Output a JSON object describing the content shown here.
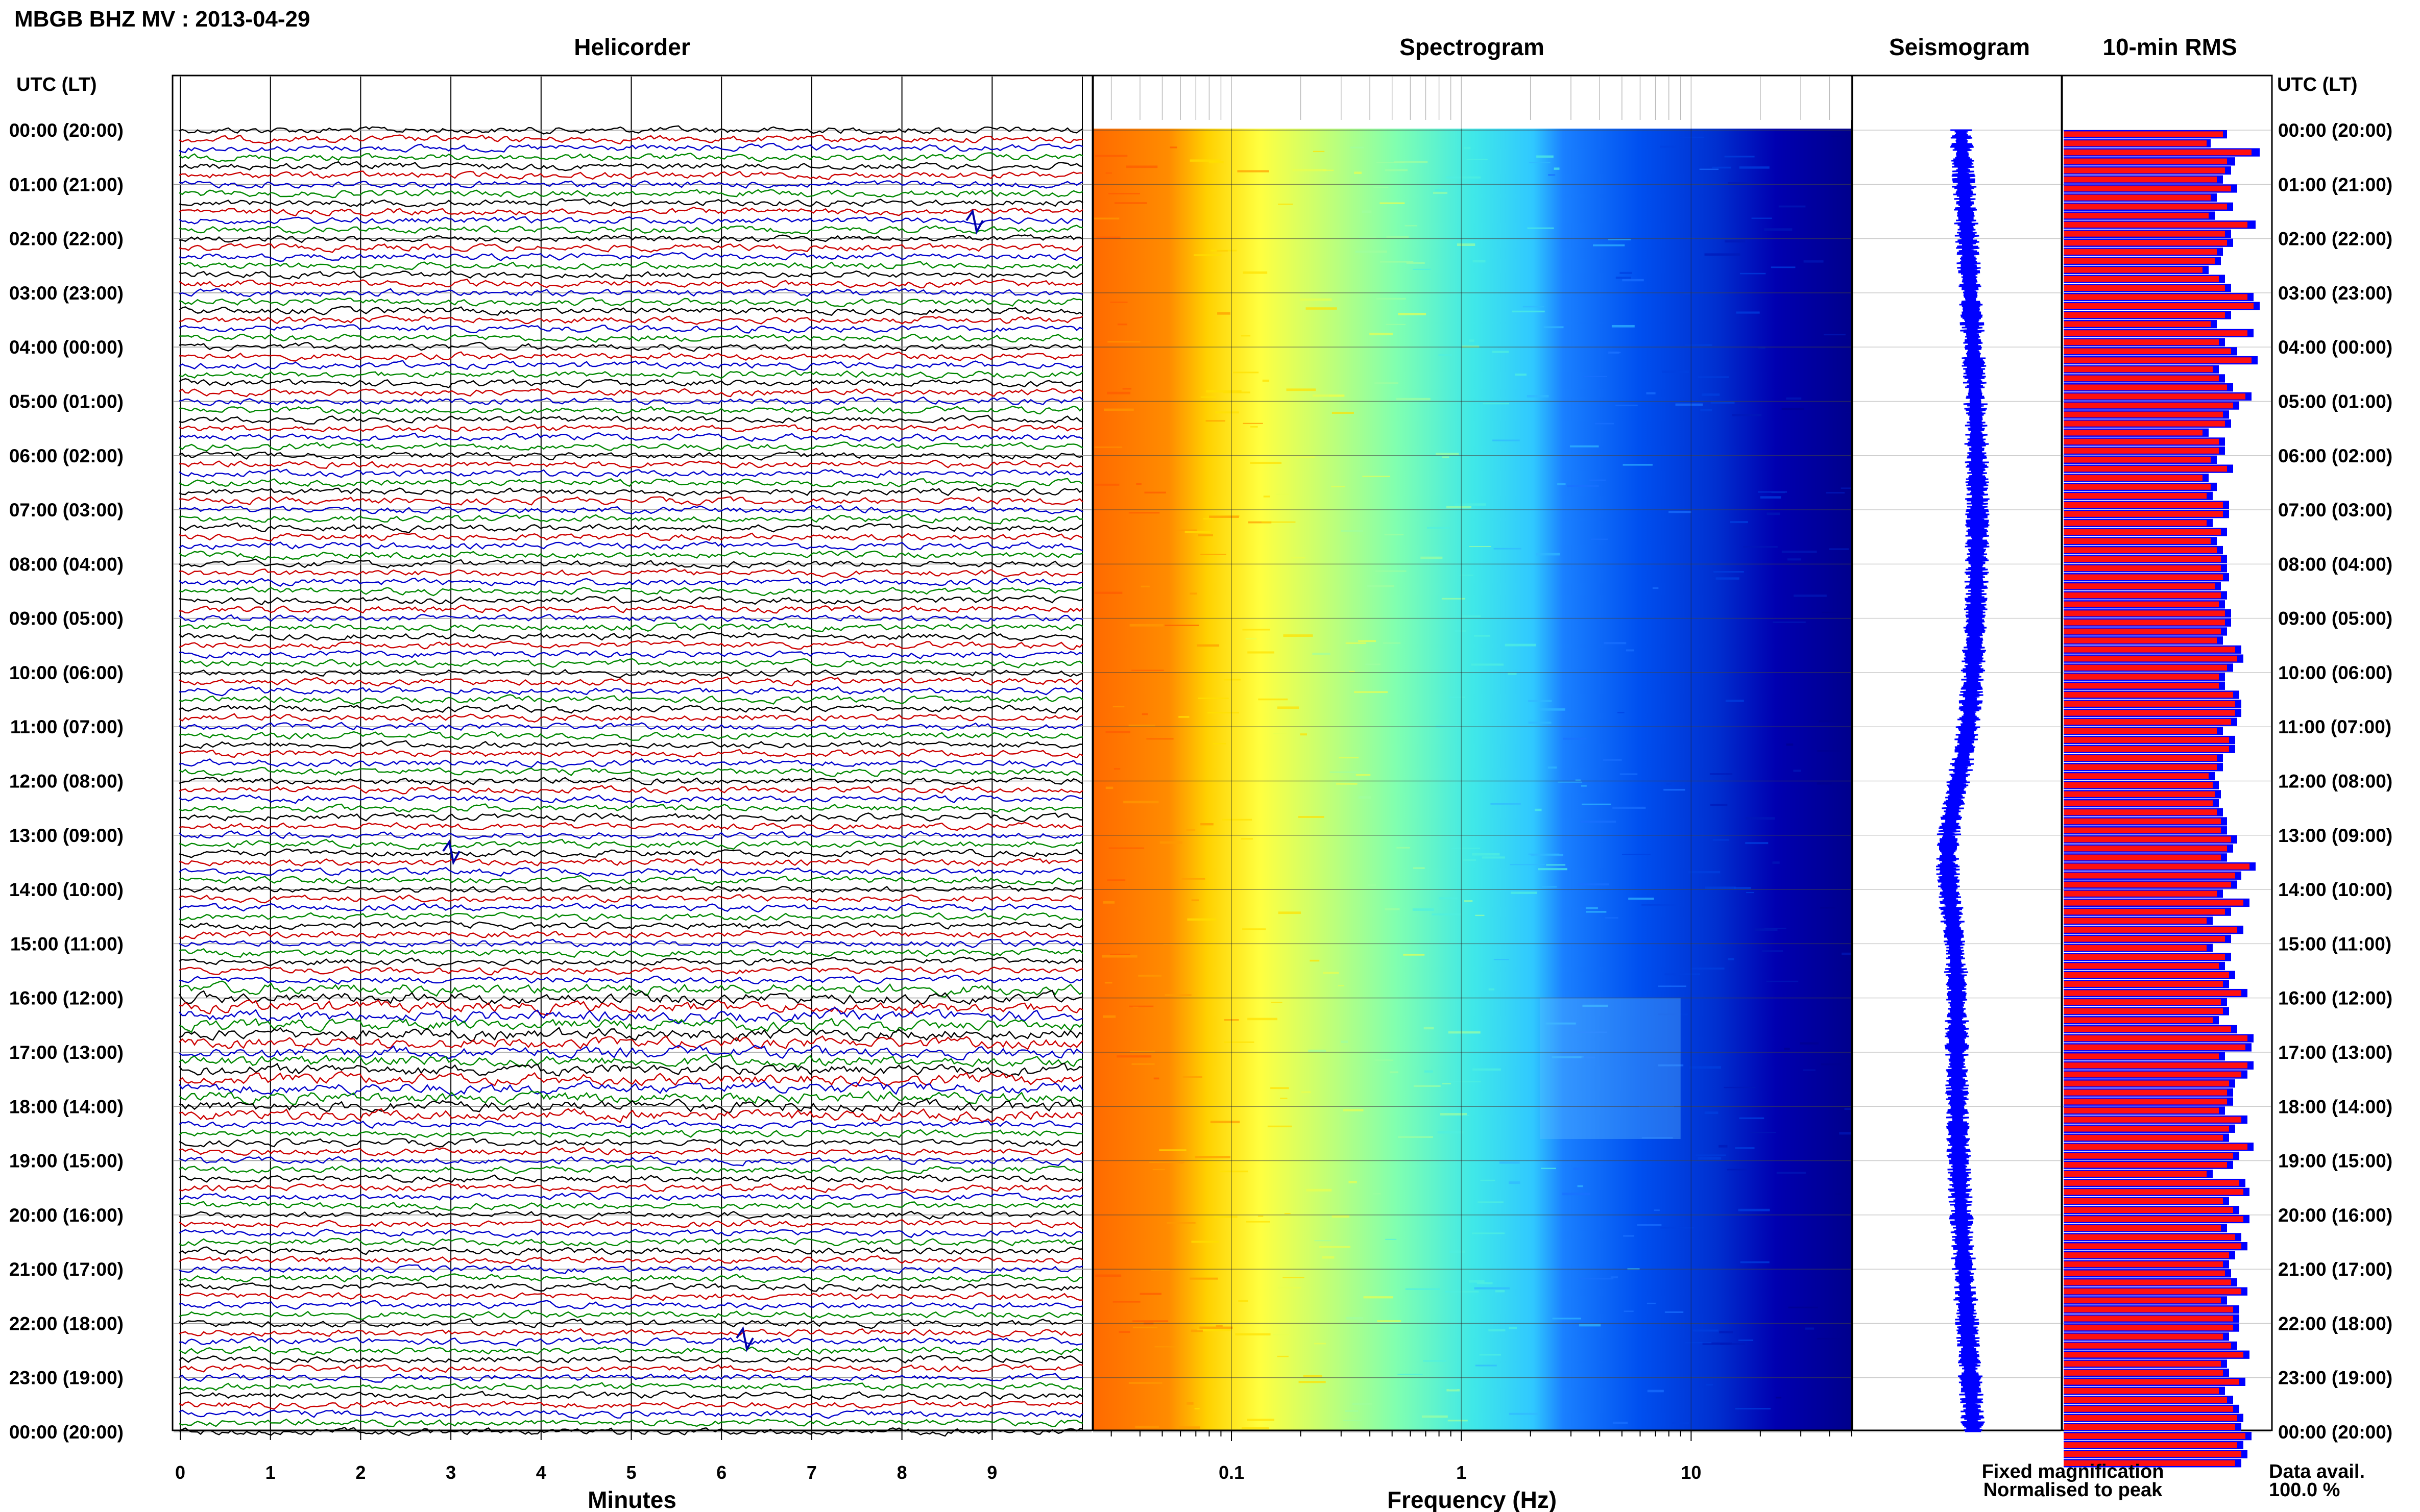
{
  "header": {
    "station_title": "MBGB BHZ MV : 2013-04-29",
    "utc_lt_label": "UTC (LT)"
  },
  "panels": {
    "helicorder": "Helicorder",
    "spectrogram": "Spectrogram",
    "seismogram": "Seismogram",
    "rms": "10-min RMS"
  },
  "legend": {
    "fixed": "Fixed magnification",
    "normalised": "Normalised to peak",
    "fixed_color": "#0000ff",
    "normalised_color": "#ff0000"
  },
  "availability": {
    "label": "Data avail.",
    "value": "100.0 %"
  },
  "chart_data": [
    {
      "type": "line",
      "name": "helicorder",
      "title": "Helicorder",
      "xlabel": "Minutes",
      "xticks": [
        "0",
        "1",
        "2",
        "3",
        "4",
        "5",
        "6",
        "7",
        "8",
        "9"
      ],
      "xlim": [
        0,
        10
      ],
      "time_labels": [
        "00:00 (20:00)",
        "01:00 (21:00)",
        "02:00 (22:00)",
        "03:00 (23:00)",
        "04:00 (00:00)",
        "05:00 (01:00)",
        "06:00 (02:00)",
        "07:00 (03:00)",
        "08:00 (04:00)",
        "09:00 (05:00)",
        "10:00 (06:00)",
        "11:00 (07:00)",
        "12:00 (08:00)",
        "13:00 (09:00)",
        "14:00 (10:00)",
        "15:00 (11:00)",
        "16:00 (12:00)",
        "17:00 (13:00)",
        "18:00 (14:00)",
        "19:00 (15:00)",
        "20:00 (16:00)",
        "21:00 (17:00)",
        "22:00 (18:00)",
        "23:00 (19:00)",
        "00:00 (20:00)"
      ],
      "rows_per_hour": 6,
      "trace_colors": [
        "#000000",
        "#cc0000",
        "#0000cc",
        "#008800"
      ]
    },
    {
      "type": "heatmap",
      "name": "spectrogram",
      "title": "Spectrogram",
      "xlabel": "Frequency (Hz)",
      "xscale": "log",
      "xlim": [
        0.025,
        50
      ],
      "xticks": [
        "0.1",
        "1",
        "10"
      ],
      "colormap": [
        "#ff6600",
        "#ffcc00",
        "#ffff33",
        "#aaff66",
        "#33ffcc",
        "#33ccff",
        "#0066ff",
        "#0000cc"
      ]
    },
    {
      "type": "line",
      "name": "seismogram",
      "title": "Seismogram",
      "color": "#0000ff"
    },
    {
      "type": "bar",
      "name": "rms",
      "title": "10-min RMS",
      "orientation": "horizontal",
      "series": [
        {
          "name": "Fixed magnification",
          "color": "#0000ff"
        },
        {
          "name": "Normalised to peak",
          "color": "#ff0000"
        }
      ],
      "fixed_values": [
        0.8,
        0.72,
        0.96,
        0.84,
        0.82,
        0.78,
        0.85,
        0.75,
        0.83,
        0.74,
        0.94,
        0.82,
        0.83,
        0.78,
        0.77,
        0.71,
        0.79,
        0.82,
        0.93,
        0.96,
        0.82,
        0.75,
        0.93,
        0.79,
        0.85,
        0.95,
        0.76,
        0.79,
        0.83,
        0.92,
        0.86,
        0.81,
        0.82,
        0.71,
        0.79,
        0.79,
        0.75,
        0.83,
        0.71,
        0.75,
        0.73,
        0.81,
        0.81,
        0.73,
        0.8,
        0.75,
        0.78,
        0.8,
        0.8,
        0.81,
        0.77,
        0.8,
        0.79,
        0.82,
        0.82,
        0.8,
        0.78,
        0.87,
        0.88,
        0.83,
        0.79,
        0.79,
        0.86,
        0.87,
        0.87,
        0.85,
        0.78,
        0.84,
        0.84,
        0.78,
        0.78,
        0.74,
        0.76,
        0.77,
        0.76,
        0.78,
        0.8,
        0.8,
        0.85,
        0.83,
        0.8,
        0.94,
        0.87,
        0.85,
        0.78,
        0.91,
        0.82,
        0.73,
        0.88,
        0.82,
        0.73,
        0.82,
        0.79,
        0.84,
        0.81,
        0.9,
        0.8,
        0.81,
        0.76,
        0.85,
        0.93,
        0.92,
        0.79,
        0.93,
        0.9,
        0.84,
        0.83,
        0.83,
        0.79,
        0.9,
        0.84,
        0.81,
        0.93,
        0.86,
        0.83,
        0.73,
        0.89,
        0.91,
        0.81,
        0.86,
        0.91,
        0.8,
        0.87,
        0.9,
        0.84,
        0.81,
        0.82,
        0.85,
        0.9,
        0.8,
        0.86,
        0.86,
        0.86,
        0.81,
        0.85,
        0.91,
        0.8,
        0.81,
        0.89,
        0.79,
        0.83,
        0.86,
        0.88,
        0.87,
        0.92,
        0.88,
        0.9,
        0.87
      ],
      "normalised_values": [
        0.78,
        0.7,
        0.92,
        0.8,
        0.79,
        0.75,
        0.82,
        0.72,
        0.8,
        0.71,
        0.9,
        0.79,
        0.8,
        0.75,
        0.74,
        0.68,
        0.76,
        0.79,
        0.9,
        0.93,
        0.79,
        0.72,
        0.9,
        0.76,
        0.82,
        0.92,
        0.73,
        0.76,
        0.8,
        0.89,
        0.83,
        0.78,
        0.79,
        0.68,
        0.76,
        0.76,
        0.72,
        0.8,
        0.68,
        0.72,
        0.7,
        0.78,
        0.78,
        0.7,
        0.77,
        0.72,
        0.75,
        0.77,
        0.77,
        0.78,
        0.74,
        0.77,
        0.76,
        0.79,
        0.79,
        0.77,
        0.75,
        0.84,
        0.85,
        0.8,
        0.76,
        0.76,
        0.83,
        0.84,
        0.84,
        0.82,
        0.75,
        0.81,
        0.81,
        0.75,
        0.75,
        0.71,
        0.73,
        0.74,
        0.73,
        0.75,
        0.77,
        0.77,
        0.82,
        0.8,
        0.77,
        0.91,
        0.84,
        0.82,
        0.75,
        0.88,
        0.79,
        0.7,
        0.85,
        0.79,
        0.7,
        0.79,
        0.76,
        0.81,
        0.78,
        0.87,
        0.77,
        0.78,
        0.73,
        0.82,
        0.9,
        0.89,
        0.76,
        0.9,
        0.87,
        0.81,
        0.8,
        0.8,
        0.76,
        0.87,
        0.81,
        0.78,
        0.9,
        0.83,
        0.8,
        0.7,
        0.86,
        0.88,
        0.78,
        0.83,
        0.88,
        0.77,
        0.84,
        0.87,
        0.81,
        0.78,
        0.79,
        0.82,
        0.87,
        0.77,
        0.83,
        0.83,
        0.83,
        0.78,
        0.82,
        0.88,
        0.77,
        0.78,
        0.86,
        0.76,
        0.8,
        0.83,
        0.85,
        0.84,
        0.89,
        0.85,
        0.87,
        0.84
      ]
    }
  ]
}
